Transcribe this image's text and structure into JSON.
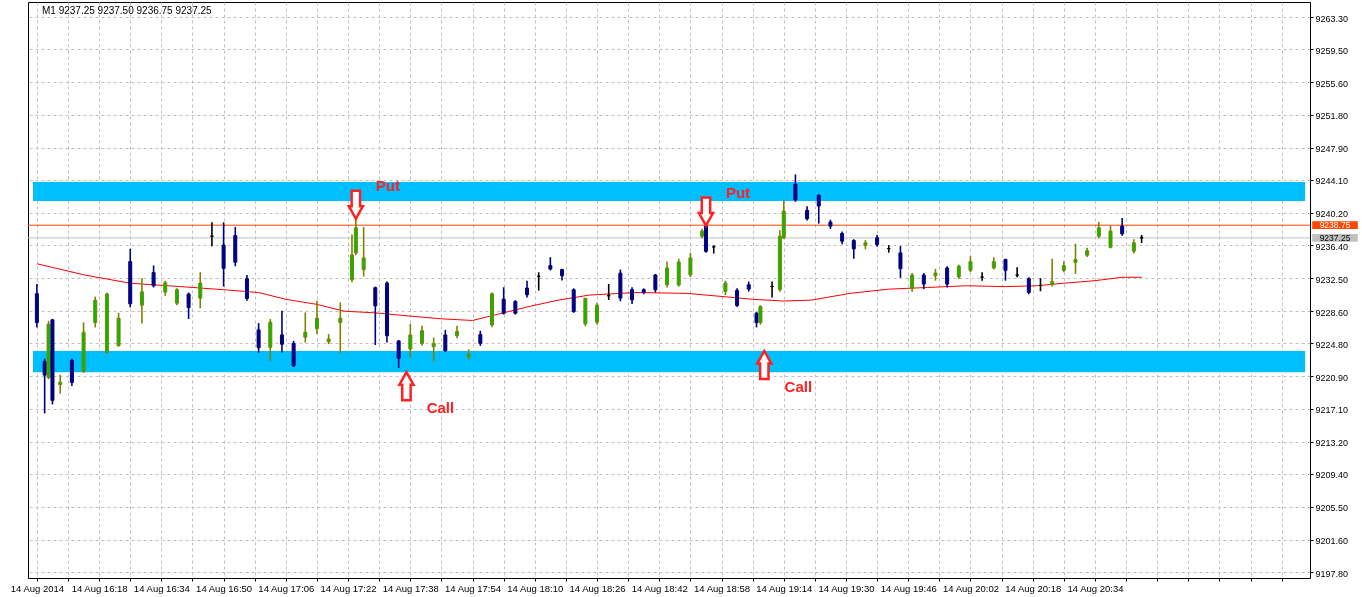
{
  "chart_data": {
    "type": "candlestick",
    "title": "M1  9237.25 9237.50 9236.75 9237.25",
    "x": [
      "2014-08-14T16:02",
      "2014-08-14T16:04",
      "2014-08-14T16:05",
      "2014-08-14T16:06",
      "2014-08-14T16:08",
      "2014-08-14T16:11",
      "2014-08-14T16:14",
      "2014-08-14T16:17",
      "2014-08-14T16:20",
      "2014-08-14T16:23",
      "2014-08-14T16:26",
      "2014-08-14T16:29",
      "2014-08-14T16:32",
      "2014-08-14T16:35",
      "2014-08-14T16:38",
      "2014-08-14T16:41",
      "2014-08-14T16:44",
      "2014-08-14T16:47",
      "2014-08-14T16:50",
      "2014-08-14T16:53",
      "2014-08-14T16:56",
      "2014-08-14T16:59",
      "2014-08-14T17:02",
      "2014-08-14T17:05",
      "2014-08-14T17:08",
      "2014-08-14T17:11",
      "2014-08-14T17:14",
      "2014-08-14T17:17",
      "2014-08-14T17:20",
      "2014-08-14T17:23",
      "2014-08-14T17:24",
      "2014-08-14T17:26",
      "2014-08-14T17:29",
      "2014-08-14T17:32",
      "2014-08-14T17:35",
      "2014-08-14T17:38",
      "2014-08-14T17:41",
      "2014-08-14T17:44",
      "2014-08-14T17:47",
      "2014-08-14T17:50",
      "2014-08-14T17:53",
      "2014-08-14T17:56",
      "2014-08-14T17:59",
      "2014-08-14T18:02",
      "2014-08-14T18:05",
      "2014-08-14T18:08",
      "2014-08-14T18:11",
      "2014-08-14T18:14",
      "2014-08-14T18:17",
      "2014-08-14T18:20",
      "2014-08-14T18:23",
      "2014-08-14T18:26",
      "2014-08-14T18:29",
      "2014-08-14T18:32",
      "2014-08-14T18:35",
      "2014-08-14T18:38",
      "2014-08-14T18:41",
      "2014-08-14T18:44",
      "2014-08-14T18:47",
      "2014-08-14T18:50",
      "2014-08-14T18:53",
      "2014-08-14T18:54",
      "2014-08-14T18:56",
      "2014-08-14T18:59",
      "2014-08-14T19:02",
      "2014-08-14T19:05",
      "2014-08-14T19:07",
      "2014-08-14T19:08",
      "2014-08-14T19:11",
      "2014-08-14T19:13",
      "2014-08-14T19:14",
      "2014-08-14T19:17",
      "2014-08-14T19:20",
      "2014-08-14T19:23",
      "2014-08-14T19:26",
      "2014-08-14T19:29",
      "2014-08-14T19:32",
      "2014-08-14T19:35",
      "2014-08-14T19:38",
      "2014-08-14T19:41",
      "2014-08-14T19:44",
      "2014-08-14T19:47",
      "2014-08-14T19:50",
      "2014-08-14T19:53",
      "2014-08-14T19:56",
      "2014-08-14T19:59",
      "2014-08-14T20:02",
      "2014-08-14T20:05",
      "2014-08-14T20:08",
      "2014-08-14T20:11",
      "2014-08-14T20:14",
      "2014-08-14T20:17",
      "2014-08-14T20:20",
      "2014-08-14T20:23",
      "2014-08-14T20:26",
      "2014-08-14T20:29",
      "2014-08-14T20:32",
      "2014-08-14T20:35",
      "2014-08-14T20:38",
      "2014-08-14T20:41",
      "2014-08-14T20:44",
      "2014-08-14T20:46"
    ],
    "ohlc": [
      [
        9230.66,
        9231.72,
        9226.78,
        9227.25
      ],
      [
        9222.63,
        9222.9,
        9216.62,
        9221.05
      ],
      [
        9220.77,
        9227.37,
        9220.65,
        9227.06
      ],
      [
        9227.57,
        9227.6,
        9217.69,
        9218.08
      ],
      [
        9219.94,
        9221.0,
        9218.95,
        9220.22
      ],
      [
        9222.79,
        9222.9,
        9219.86,
        9220.18
      ],
      [
        9221.48,
        9227.18,
        9221.4,
        9226.11
      ],
      [
        9227.25,
        9230.22,
        9226.78,
        9229.9
      ],
      [
        9223.74,
        9230.7,
        9223.7,
        9230.62
      ],
      [
        9224.53,
        9228.3,
        9224.5,
        9227.77
      ],
      [
        9234.45,
        9235.87,
        9229.15,
        9229.47
      ],
      [
        9229.31,
        9232.39,
        9227.25,
        9230.89
      ],
      [
        9233.15,
        9233.9,
        9231.5,
        9231.6
      ],
      [
        9230.85,
        9232.1,
        9230.5,
        9231.96
      ],
      [
        9229.55,
        9231.2,
        9229.4,
        9231.13
      ],
      [
        9230.62,
        9230.7,
        9227.77,
        9229.03
      ],
      [
        9230.14,
        9233.1,
        9229.03,
        9231.92
      ],
      [
        9237.45,
        9239.0,
        9236.35,
        9237.45
      ],
      [
        9236.4,
        9239.0,
        9231.6,
        9233.66
      ],
      [
        9237.53,
        9238.44,
        9234.0,
        9234.37
      ],
      [
        9232.43,
        9232.79,
        9229.94,
        9230.1
      ],
      [
        9226.39,
        9227.1,
        9223.8,
        9224.29
      ],
      [
        9224.33,
        9227.57,
        9222.83,
        9227.3
      ],
      [
        9225.8,
        9228.56,
        9223.82,
        9224.7
      ],
      [
        9224.8,
        9225.0,
        9222.1,
        9222.15
      ],
      [
        9225.52,
        9228.36,
        9225.0,
        9226.11
      ],
      [
        9226.54,
        9229.75,
        9226.0,
        9227.77
      ],
      [
        9225.0,
        9225.8,
        9224.8,
        9225.32
      ],
      [
        9227.25,
        9229.55,
        9223.7,
        9227.77
      ],
      [
        9232.32,
        9237.57,
        9232.1,
        9235.24
      ],
      [
        9235.48,
        9239.51,
        9235.3,
        9238.44
      ],
      [
        9233.5,
        9238.44,
        9232.79,
        9234.88
      ],
      [
        9231.37,
        9231.4,
        9224.7,
        9229.23
      ],
      [
        9231.92,
        9232.0,
        9225.0,
        9225.71
      ],
      [
        9225.08,
        9225.1,
        9222.0,
        9223.03
      ],
      [
        9224.13,
        9226.98,
        9223.2,
        9225.79
      ],
      [
        9224.8,
        9226.78,
        9224.6,
        9226.3
      ],
      [
        9224.41,
        9225.4,
        9222.75,
        9224.8
      ],
      [
        9225.79,
        9226.3,
        9223.9,
        9223.93
      ],
      [
        9225.71,
        9226.78,
        9225.5,
        9226.19
      ],
      [
        9223.22,
        9224.0,
        9223.0,
        9223.5
      ],
      [
        9225.83,
        9226.2,
        9224.6,
        9224.8
      ],
      [
        9226.98,
        9230.7,
        9226.8,
        9230.66
      ],
      [
        9230.02,
        9231.33,
        9228.3,
        9228.36
      ],
      [
        9229.75,
        9229.8,
        9228.3,
        9228.36
      ],
      [
        9231.33,
        9232.1,
        9230.3,
        9230.54
      ],
      [
        9232.71,
        9233.1,
        9231.13,
        9232.71
      ],
      [
        9233.98,
        9234.88,
        9233.5,
        9233.58
      ],
      [
        9233.5,
        9233.5,
        9232.32,
        9232.79
      ],
      [
        9231.13,
        9231.2,
        9228.5,
        9228.56
      ],
      [
        9227.1,
        9230.1,
        9226.9,
        9230.1
      ],
      [
        9227.3,
        9229.5,
        9227.1,
        9229.3
      ],
      [
        9230.42,
        9231.72,
        9230.02,
        9230.42
      ],
      [
        9233.1,
        9233.42,
        9229.86,
        9230.14
      ],
      [
        9231.13,
        9231.33,
        9229.55,
        9229.94
      ],
      [
        9231.13,
        9231.2,
        9230.7,
        9230.81
      ],
      [
        9232.87,
        9232.9,
        9230.9,
        9231.13
      ],
      [
        9231.72,
        9234.37,
        9231.5,
        9233.7
      ],
      [
        9231.68,
        9234.7,
        9231.6,
        9234.41
      ],
      [
        9232.87,
        9235.4,
        9232.7,
        9234.88
      ],
      [
        9237.45,
        9238.24,
        9237.3,
        9238.05
      ],
      [
        9238.64,
        9238.7,
        9235.6,
        9235.67
      ],
      [
        9236.19,
        9236.3,
        9235.5,
        9236.19
      ],
      [
        9230.92,
        9232.1,
        9230.6,
        9231.92
      ],
      [
        9231.05,
        9231.2,
        9229.2,
        9229.27
      ],
      [
        9231.72,
        9232.0,
        9231.0,
        9231.21
      ],
      [
        9228.36,
        9228.4,
        9226.78,
        9227.25
      ],
      [
        9227.25,
        9229.2,
        9227.1,
        9229.15
      ],
      [
        9231.52,
        9232.0,
        9230.3,
        9231.52
      ],
      [
        9231.13,
        9238.05,
        9231.0,
        9237.45
      ],
      [
        9237.26,
        9241.6,
        9237.2,
        9240.42
      ],
      [
        9243.58,
        9244.65,
        9241.6,
        9241.72
      ],
      [
        9240.5,
        9240.9,
        9239.4,
        9239.51
      ],
      [
        9242.28,
        9242.3,
        9239.04,
        9241.01
      ],
      [
        9239.12,
        9239.3,
        9238.4,
        9238.64
      ],
      [
        9237.77,
        9237.9,
        9236.6,
        9236.86
      ],
      [
        9236.94,
        9237.0,
        9234.88,
        9235.95
      ],
      [
        9236.35,
        9236.9,
        9236.0,
        9236.67
      ],
      [
        9237.26,
        9237.5,
        9236.3,
        9236.47
      ],
      [
        9235.99,
        9236.3,
        9235.6,
        9235.99
      ],
      [
        9235.48,
        9236.19,
        9232.63,
        9233.62
      ],
      [
        9231.29,
        9233.0,
        9231.0,
        9232.87
      ],
      [
        9232.87,
        9233.0,
        9231.3,
        9231.8
      ],
      [
        9232.79,
        9233.5,
        9232.3,
        9233.1
      ],
      [
        9233.7,
        9233.8,
        9231.5,
        9231.8
      ],
      [
        9232.63,
        9234.0,
        9232.5,
        9233.9
      ],
      [
        9233.42,
        9235.0,
        9233.3,
        9234.45
      ],
      [
        9232.63,
        9233.1,
        9232.3,
        9232.63
      ],
      [
        9233.7,
        9234.88,
        9233.6,
        9234.45
      ],
      [
        9234.69,
        9234.7,
        9232.3,
        9233.42
      ],
      [
        9232.87,
        9233.7,
        9232.7,
        9232.87
      ],
      [
        9232.43,
        9232.5,
        9230.7,
        9230.81
      ],
      [
        9231.64,
        9232.4,
        9231.05,
        9231.64
      ],
      [
        9231.72,
        9234.69,
        9231.6,
        9232.1
      ],
      [
        9233.42,
        9234.4,
        9233.3,
        9233.98
      ],
      [
        9234.37,
        9236.47,
        9233.1,
        9234.69
      ],
      [
        9235.2,
        9236.0,
        9235.1,
        9235.75
      ],
      [
        9237.45,
        9239.04,
        9237.3,
        9238.44
      ],
      [
        9236.15,
        9238.6,
        9236.1,
        9238.05
      ],
      [
        9238.64,
        9239.5,
        9237.6,
        9237.73
      ],
      [
        9235.67,
        9237.0,
        9235.5,
        9236.67
      ],
      [
        9237.25,
        9237.5,
        9236.75,
        9237.25
      ]
    ],
    "series": [
      {
        "type": "line",
        "color": "#ff0000",
        "x": [
          "2014-08-14T16:02",
          "2014-08-14T16:14",
          "2014-08-14T16:26",
          "2014-08-14T16:39",
          "2014-08-14T16:51",
          "2014-08-14T16:59",
          "2014-08-14T17:06",
          "2014-08-14T17:14",
          "2014-08-14T17:21",
          "2014-08-14T17:29",
          "2014-08-14T17:36",
          "2014-08-14T17:46",
          "2014-08-14T17:54",
          "2014-08-14T18:01",
          "2014-08-14T18:09",
          "2014-08-14T18:16",
          "2014-08-14T18:24",
          "2014-08-14T18:36",
          "2014-08-14T18:49",
          "2014-08-14T18:59",
          "2014-08-14T19:06",
          "2014-08-14T19:14",
          "2014-08-14T19:21",
          "2014-08-14T19:31",
          "2014-08-14T19:41",
          "2014-08-14T19:51",
          "2014-08-14T20:01",
          "2014-08-14T20:11",
          "2014-08-14T20:19",
          "2014-08-14T20:26",
          "2014-08-14T20:34",
          "2014-08-14T20:41",
          "2014-08-14T20:46"
        ],
        "values": [
          9234.2,
          9232.9,
          9231.9,
          9231.5,
          9231.1,
          9230.8,
          9230.0,
          9229.4,
          9228.6,
          9228.4,
          9228.1,
          9227.7,
          9227.5,
          9228.3,
          9229.2,
          9229.9,
          9230.5,
          9230.8,
          9230.7,
          9230.3,
          9230.0,
          9229.8,
          9229.9,
          9230.7,
          9231.2,
          9231.4,
          9231.6,
          9231.5,
          9231.6,
          9231.9,
          9232.2,
          9232.6,
          9232.6
        ]
      }
    ],
    "xlim": [
      "2014-08-14T16:01",
      "2014-08-14T21:28"
    ],
    "xticks": [
      {
        "value": "2014-08-14T16:02",
        "label": "14 Aug 2014"
      },
      {
        "value": "2014-08-14T16:10",
        "label": null
      },
      {
        "value": "2014-08-14T16:18",
        "label": "14 Aug 16:18"
      },
      {
        "value": "2014-08-14T16:26",
        "label": null
      },
      {
        "value": "2014-08-14T16:34",
        "label": "14 Aug 16:34"
      },
      {
        "value": "2014-08-14T16:42",
        "label": null
      },
      {
        "value": "2014-08-14T16:50",
        "label": "14 Aug 16:50"
      },
      {
        "value": "2014-08-14T16:58",
        "label": null
      },
      {
        "value": "2014-08-14T17:06",
        "label": "14 Aug 17:06"
      },
      {
        "value": "2014-08-14T17:14",
        "label": null
      },
      {
        "value": "2014-08-14T17:22",
        "label": "14 Aug 17:22"
      },
      {
        "value": "2014-08-14T17:30",
        "label": null
      },
      {
        "value": "2014-08-14T17:38",
        "label": "14 Aug 17:38"
      },
      {
        "value": "2014-08-14T17:46",
        "label": null
      },
      {
        "value": "2014-08-14T17:54",
        "label": "14 Aug 17:54"
      },
      {
        "value": "2014-08-14T18:02",
        "label": null
      },
      {
        "value": "2014-08-14T18:10",
        "label": "14 Aug 18:10"
      },
      {
        "value": "2014-08-14T18:18",
        "label": null
      },
      {
        "value": "2014-08-14T18:26",
        "label": "14 Aug 18:26"
      },
      {
        "value": "2014-08-14T18:34",
        "label": null
      },
      {
        "value": "2014-08-14T18:42",
        "label": "14 Aug 18:42"
      },
      {
        "value": "2014-08-14T18:50",
        "label": null
      },
      {
        "value": "2014-08-14T18:58",
        "label": "14 Aug 18:58"
      },
      {
        "value": "2014-08-14T19:06",
        "label": null
      },
      {
        "value": "2014-08-14T19:14",
        "label": "14 Aug 19:14"
      },
      {
        "value": "2014-08-14T19:22",
        "label": null
      },
      {
        "value": "2014-08-14T19:30",
        "label": "14 Aug 19:30"
      },
      {
        "value": "2014-08-14T19:38",
        "label": null
      },
      {
        "value": "2014-08-14T19:46",
        "label": "14 Aug 19:46"
      },
      {
        "value": "2014-08-14T19:54",
        "label": null
      },
      {
        "value": "2014-08-14T20:02",
        "label": "14 Aug 20:02"
      },
      {
        "value": "2014-08-14T20:10",
        "label": null
      },
      {
        "value": "2014-08-14T20:18",
        "label": "14 Aug 20:18"
      },
      {
        "value": "2014-08-14T20:26",
        "label": null
      },
      {
        "value": "2014-08-14T20:34",
        "label": "14 Aug 20:34"
      },
      {
        "value": "2014-08-14T20:42",
        "label": null
      },
      {
        "value": "2014-08-14T20:50",
        "label": null
      },
      {
        "value": "2014-08-14T20:58",
        "label": null
      },
      {
        "value": "2014-08-14T21:06",
        "label": null
      },
      {
        "value": "2014-08-14T21:14",
        "label": null
      },
      {
        "value": "2014-08-14T21:22",
        "label": null
      }
    ],
    "ylim": [
      9197.1,
      9265.1
    ],
    "yticks": [
      {
        "value": 9197.8,
        "label": "9197.80"
      },
      {
        "value": 9201.6,
        "label": "9201.60"
      },
      {
        "value": 9205.5,
        "label": "9205.50"
      },
      {
        "value": 9209.4,
        "label": "9209.40"
      },
      {
        "value": 9213.2,
        "label": "9213.20"
      },
      {
        "value": 9217.1,
        "label": "9217.10"
      },
      {
        "value": 9220.9,
        "label": "9220.90"
      },
      {
        "value": 9224.8,
        "label": "9224.80"
      },
      {
        "value": 9228.6,
        "label": "9228.60"
      },
      {
        "value": 9232.5,
        "label": "9232.50"
      },
      {
        "value": 9236.4,
        "label": "9236.40"
      },
      {
        "value": 9240.2,
        "label": "9240.20"
      },
      {
        "value": 9244.1,
        "label": "9244.10"
      },
      {
        "value": 9247.9,
        "label": "9247.90"
      },
      {
        "value": 9251.8,
        "label": "9251.80"
      },
      {
        "value": 9255.6,
        "label": "9255.60"
      },
      {
        "value": 9259.5,
        "label": "9259.50"
      },
      {
        "value": 9263.3,
        "label": "9263.30"
      }
    ],
    "grid": true,
    "ref_lines": [
      {
        "axis": "y",
        "value": 9238.75,
        "label": "9238.75",
        "color": "#ff4500"
      },
      {
        "axis": "y",
        "value": 9237.25,
        "label": "9237.25",
        "color": "#c0c0c0"
      }
    ],
    "bands": [
      {
        "axis": "y",
        "from": 9241.6,
        "to": 9243.86,
        "color": "#00bfff"
      },
      {
        "axis": "y",
        "from": 9221.4,
        "to": 9223.9,
        "color": "#00bfff"
      }
    ],
    "annotations": [
      {
        "text": "Put",
        "x": "2014-08-14T17:24",
        "y": 9239.51
      },
      {
        "text": "Call",
        "x": "2014-08-14T17:37",
        "y": 9221.4
      },
      {
        "text": "Put",
        "x": "2014-08-14T18:54",
        "y": 9238.7
      },
      {
        "text": "Call",
        "x": "2014-08-14T19:09",
        "y": 9223.9
      }
    ]
  }
}
